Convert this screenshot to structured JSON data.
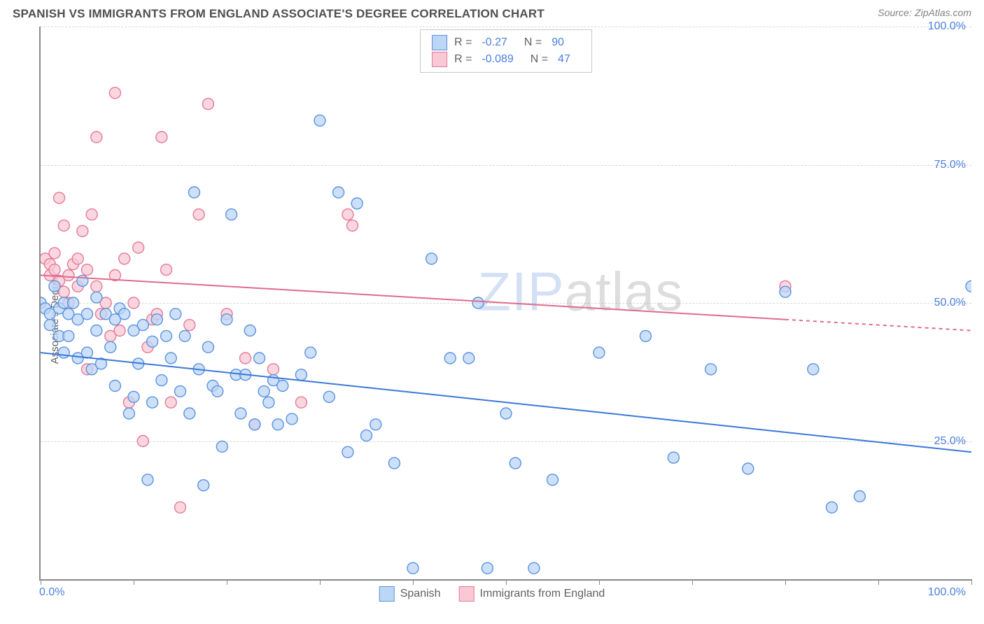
{
  "title": "SPANISH VS IMMIGRANTS FROM ENGLAND ASSOCIATE'S DEGREE CORRELATION CHART",
  "source_label": "Source:",
  "source_name": "ZipAtlas.com",
  "ylabel": "Associate's Degree",
  "watermark": {
    "part1": "ZIP",
    "part2": "atlas"
  },
  "chart": {
    "type": "scatter",
    "xlim": [
      0,
      100
    ],
    "ylim": [
      0,
      100
    ],
    "x_ticks": [
      0,
      10,
      20,
      30,
      40,
      50,
      60,
      70,
      80,
      90,
      100
    ],
    "y_gridlines": [
      25,
      50,
      75,
      100
    ],
    "y_tick_labels": [
      "25.0%",
      "50.0%",
      "75.0%",
      "100.0%"
    ],
    "x_tick_labels": {
      "left": "0.0%",
      "right": "100.0%"
    },
    "background_color": "#ffffff",
    "grid_color": "#d8d8d8",
    "axis_color": "#888888",
    "marker_radius": 8,
    "marker_stroke_width": 1.4,
    "trend_line_width": 2,
    "series": [
      {
        "name": "Spanish",
        "fill": "#bcd6f6",
        "stroke": "#5a93e0",
        "line_color": "#3b78d8",
        "r": -0.27,
        "n": 90,
        "trend": {
          "x1": 0,
          "y1": 41,
          "x2": 100,
          "y2": 23,
          "dash_after_x": null
        },
        "points": [
          [
            0,
            50
          ],
          [
            0.5,
            49
          ],
          [
            1,
            48
          ],
          [
            1,
            46
          ],
          [
            1.5,
            53
          ],
          [
            2,
            44
          ],
          [
            2,
            49
          ],
          [
            2.5,
            41
          ],
          [
            2.5,
            50
          ],
          [
            3,
            44
          ],
          [
            3,
            48
          ],
          [
            3.5,
            50
          ],
          [
            4,
            40
          ],
          [
            4,
            47
          ],
          [
            4.5,
            54
          ],
          [
            5,
            41
          ],
          [
            5,
            48
          ],
          [
            5.5,
            38
          ],
          [
            6,
            45
          ],
          [
            6,
            51
          ],
          [
            6.5,
            39
          ],
          [
            7,
            48
          ],
          [
            7.5,
            42
          ],
          [
            8,
            35
          ],
          [
            8,
            47
          ],
          [
            8.5,
            49
          ],
          [
            9,
            48
          ],
          [
            9.5,
            30
          ],
          [
            10,
            45
          ],
          [
            10,
            33
          ],
          [
            10.5,
            39
          ],
          [
            11,
            46
          ],
          [
            11.5,
            18
          ],
          [
            12,
            32
          ],
          [
            12,
            43
          ],
          [
            12.5,
            47
          ],
          [
            13,
            36
          ],
          [
            13.5,
            44
          ],
          [
            14,
            40
          ],
          [
            14.5,
            48
          ],
          [
            15,
            34
          ],
          [
            15.5,
            44
          ],
          [
            16,
            30
          ],
          [
            16.5,
            70
          ],
          [
            17,
            38
          ],
          [
            17.5,
            17
          ],
          [
            18,
            42
          ],
          [
            18.5,
            35
          ],
          [
            19,
            34
          ],
          [
            19.5,
            24
          ],
          [
            20,
            47
          ],
          [
            20.5,
            66
          ],
          [
            21,
            37
          ],
          [
            21.5,
            30
          ],
          [
            22,
            37
          ],
          [
            22.5,
            45
          ],
          [
            23,
            28
          ],
          [
            23.5,
            40
          ],
          [
            24,
            34
          ],
          [
            24.5,
            32
          ],
          [
            25,
            36
          ],
          [
            25.5,
            28
          ],
          [
            26,
            35
          ],
          [
            27,
            29
          ],
          [
            28,
            37
          ],
          [
            29,
            41
          ],
          [
            30,
            83
          ],
          [
            31,
            33
          ],
          [
            32,
            70
          ],
          [
            33,
            23
          ],
          [
            34,
            68
          ],
          [
            35,
            26
          ],
          [
            36,
            28
          ],
          [
            38,
            21
          ],
          [
            40,
            2
          ],
          [
            42,
            58
          ],
          [
            44,
            40
          ],
          [
            46,
            40
          ],
          [
            47,
            50
          ],
          [
            48,
            2
          ],
          [
            50,
            30
          ],
          [
            51,
            21
          ],
          [
            53,
            2
          ],
          [
            55,
            18
          ],
          [
            60,
            41
          ],
          [
            65,
            44
          ],
          [
            68,
            22
          ],
          [
            72,
            38
          ],
          [
            76,
            20
          ],
          [
            80,
            52
          ],
          [
            83,
            38
          ],
          [
            85,
            13
          ],
          [
            88,
            15
          ],
          [
            100,
            53
          ]
        ]
      },
      {
        "name": "Immigrants from England",
        "fill": "#f8c9d4",
        "stroke": "#e47a99",
        "line_color": "#e06b8d",
        "r": -0.089,
        "n": 47,
        "trend": {
          "x1": 0,
          "y1": 55,
          "x2": 100,
          "y2": 45,
          "dash_after_x": 80
        },
        "points": [
          [
            0.5,
            58
          ],
          [
            1,
            57
          ],
          [
            1,
            55
          ],
          [
            1.5,
            56
          ],
          [
            1.5,
            59
          ],
          [
            2,
            54
          ],
          [
            2,
            69
          ],
          [
            2.5,
            52
          ],
          [
            2.5,
            64
          ],
          [
            3,
            50
          ],
          [
            3,
            55
          ],
          [
            3.5,
            57
          ],
          [
            4,
            58
          ],
          [
            4,
            53
          ],
          [
            4.5,
            63
          ],
          [
            5,
            38
          ],
          [
            5,
            56
          ],
          [
            5.5,
            66
          ],
          [
            6,
            53
          ],
          [
            6,
            80
          ],
          [
            6.5,
            48
          ],
          [
            7,
            50
          ],
          [
            7.5,
            44
          ],
          [
            8,
            88
          ],
          [
            8,
            55
          ],
          [
            8.5,
            45
          ],
          [
            9,
            58
          ],
          [
            9.5,
            32
          ],
          [
            10,
            50
          ],
          [
            10.5,
            60
          ],
          [
            11,
            25
          ],
          [
            11.5,
            42
          ],
          [
            12,
            47
          ],
          [
            12.5,
            48
          ],
          [
            13,
            80
          ],
          [
            13.5,
            56
          ],
          [
            14,
            32
          ],
          [
            15,
            13
          ],
          [
            16,
            46
          ],
          [
            17,
            66
          ],
          [
            18,
            86
          ],
          [
            20,
            48
          ],
          [
            22,
            40
          ],
          [
            23,
            28
          ],
          [
            25,
            38
          ],
          [
            28,
            32
          ],
          [
            33,
            66
          ],
          [
            33.5,
            64
          ],
          [
            80,
            53
          ]
        ]
      }
    ]
  },
  "legend_top": {
    "r_label": "R =",
    "n_label": "N ="
  },
  "legend_bottom": {
    "items": [
      "Spanish",
      "Immigrants from England"
    ]
  }
}
